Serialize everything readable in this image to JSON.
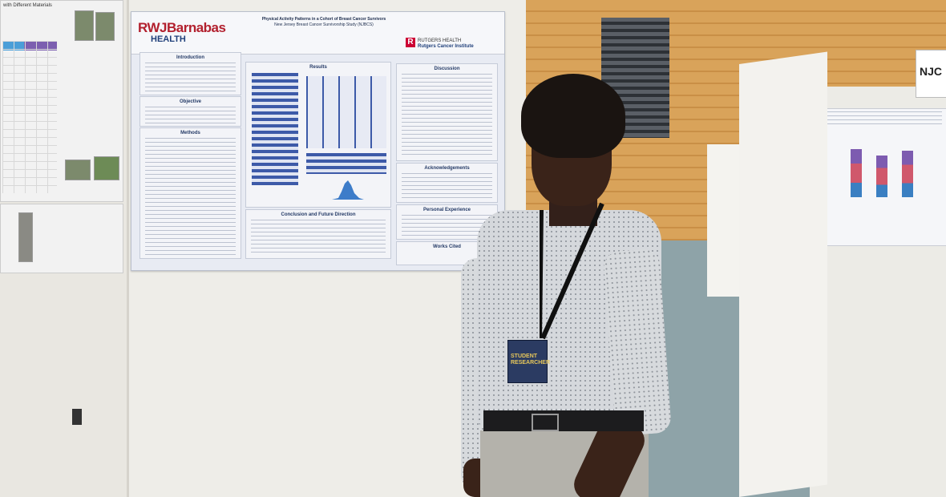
{
  "scene": {
    "description_text": {
      "main_poster": {
        "org_logo_primary": "RWJBarnabas",
        "org_logo_secondary": "HEALTH",
        "title": "Physical Activity Patterns in a Cohort of Breast Cancer Survivors",
        "subtitle": "New Jersey Breast Cancer Survivorship Study (NJBCS)",
        "partner_logo_top": "RUTGERS HEALTH",
        "partner_logo_bottom": "Rutgers Cancer Institute",
        "sections": {
          "introduction": "Introduction",
          "objective": "Objective",
          "methods": "Methods",
          "results": "Results",
          "discussion": "Discussion",
          "acknowledgements": "Acknowledgements",
          "personal_experience": "Personal Experience",
          "conclusion": "Conclusion and Future Direction",
          "works_cited": "Works Cited"
        }
      },
      "left_poster": {
        "title": "with Different Materials"
      },
      "right_sign": "NJC",
      "badge_text": "STUDENT RESEARCHER"
    }
  },
  "colors": {
    "wall_wood": "#d9a35a",
    "rwj_red": "#b2202e",
    "rwj_blue": "#1f3f7a",
    "rutgers_red": "#cc0033",
    "badge_navy": "#2b3b62"
  }
}
